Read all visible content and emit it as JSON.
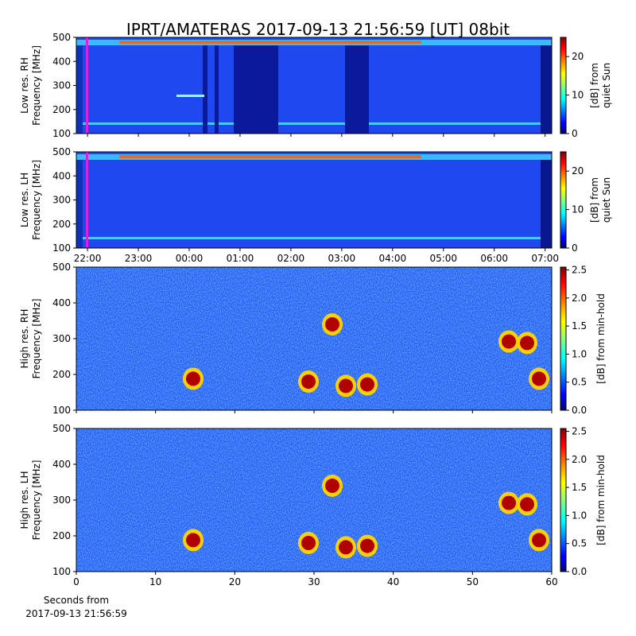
{
  "chart_data": [
    {
      "type": "heatmap",
      "title": "IPRT/AMATERAS 2017-09-13 21:56:59 [UT]   08bit",
      "ylabel": "Low res. RH\nFrequency [MHz]",
      "ylim": [
        100,
        500
      ],
      "yticks": [
        100,
        200,
        300,
        400,
        500
      ],
      "xlim": [
        21.78,
        31.13
      ],
      "xticks": [
        22,
        23,
        24,
        25,
        26,
        27,
        28,
        29,
        30,
        31
      ],
      "xtick_labels": false,
      "colorbar_label": "[dB] from\nquiet Sun",
      "clim": [
        0,
        25
      ],
      "cticks": [
        0,
        10,
        20
      ]
    },
    {
      "type": "heatmap",
      "ylabel": "Low res. LH\nFrequency [MHz]",
      "ylim": [
        100,
        500
      ],
      "yticks": [
        100,
        200,
        300,
        400,
        500
      ],
      "xlim": [
        21.78,
        31.13
      ],
      "xticks": [
        {
          "value": 22,
          "label": "22:00"
        },
        {
          "value": 23,
          "label": "23:00"
        },
        {
          "value": 24,
          "label": "00:00"
        },
        {
          "value": 25,
          "label": "01:00"
        },
        {
          "value": 26,
          "label": "02:00"
        },
        {
          "value": 27,
          "label": "03:00"
        },
        {
          "value": 28,
          "label": "04:00"
        },
        {
          "value": 29,
          "label": "05:00"
        },
        {
          "value": 30,
          "label": "06:00"
        },
        {
          "value": 31,
          "label": "07:00"
        }
      ],
      "xtick_labels": true,
      "colorbar_label": "[dB] from\nquiet Sun",
      "clim": [
        0,
        25
      ],
      "cticks": [
        0,
        10,
        20
      ]
    },
    {
      "type": "heatmap",
      "ylabel": "High res. RH\nFrequency [MHz]",
      "ylim": [
        100,
        500
      ],
      "yticks": [
        100,
        200,
        300,
        400,
        500
      ],
      "xlim": [
        0,
        60
      ],
      "xticks": [
        0,
        10,
        20,
        30,
        40,
        50,
        60
      ],
      "xtick_labels": false,
      "colorbar_label": "[dB] from min-hold",
      "clim": [
        0,
        2.55
      ],
      "cticks": [
        {
          "value": 0,
          "label": "0.0"
        },
        {
          "value": 0.5,
          "label": "0.5"
        },
        {
          "value": 1,
          "label": "1.0"
        },
        {
          "value": 1.5,
          "label": "1.5"
        },
        {
          "value": 2,
          "label": "2.0"
        },
        {
          "value": 2.5,
          "label": "2.5"
        }
      ]
    },
    {
      "type": "heatmap",
      "ylabel": "High res. LH\nFrequency [MHz]",
      "ylim": [
        100,
        500
      ],
      "yticks": [
        100,
        200,
        300,
        400,
        500
      ],
      "xlim": [
        0,
        60
      ],
      "xticks": [
        0,
        10,
        20,
        30,
        40,
        50,
        60
      ],
      "xtick_labels": true,
      "xlabel": "Seconds from\n2017-09-13 21:56:59",
      "colorbar_label": "[dB] from min-hold",
      "clim": [
        0,
        2.55
      ],
      "cticks": [
        {
          "value": 0,
          "label": "0.0"
        },
        {
          "value": 0.5,
          "label": "0.5"
        },
        {
          "value": 1,
          "label": "1.0"
        },
        {
          "value": 1.5,
          "label": "1.5"
        },
        {
          "value": 2,
          "label": "2.0"
        },
        {
          "value": 2.5,
          "label": "2.5"
        }
      ]
    }
  ]
}
